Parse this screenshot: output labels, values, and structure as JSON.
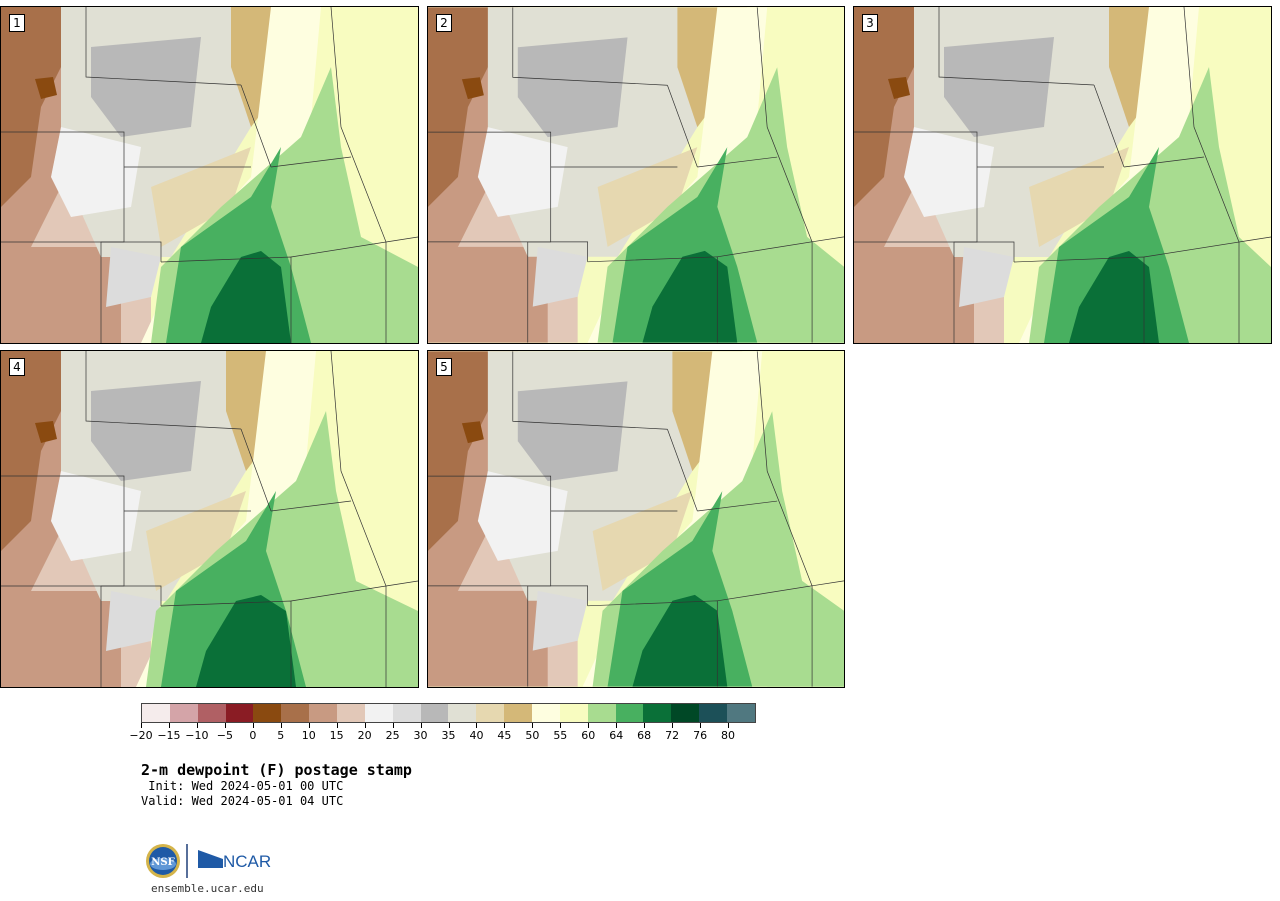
{
  "panels": [
    {
      "label": "1"
    },
    {
      "label": "2"
    },
    {
      "label": "3"
    },
    {
      "label": "4"
    },
    {
      "label": "5"
    }
  ],
  "colorbar": {
    "colors": [
      "#f5ecec",
      "#d4a4a8",
      "#b06064",
      "#8a1c24",
      "#8a4a10",
      "#a8704a",
      "#c89a82",
      "#e2c8b8",
      "#f2f2f2",
      "#dcdcdc",
      "#b8b8b8",
      "#e0e0d4",
      "#e6d8b0",
      "#d4b878",
      "#fefee0",
      "#f8fcc0",
      "#a8dc90",
      "#48b060",
      "#0a7038",
      "#004826",
      "#1c5058",
      "#507880"
    ],
    "tick_labels": [
      "−20",
      "−15",
      "−10",
      "−5",
      "0",
      "5",
      "10",
      "15",
      "20",
      "25",
      "30",
      "35",
      "40",
      "45",
      "50",
      "55",
      "60",
      "64",
      "68",
      "72",
      "76",
      "80"
    ]
  },
  "title": "2-m dewpoint (F) postage stamp",
  "init_text": " Init: Wed 2024-05-01 00 UTC",
  "valid_text": "Valid: Wed 2024-05-01 04 UTC",
  "logos": {
    "nsf": "NSF",
    "ncar": "NCAR"
  },
  "site": "ensemble.ucar.edu"
}
